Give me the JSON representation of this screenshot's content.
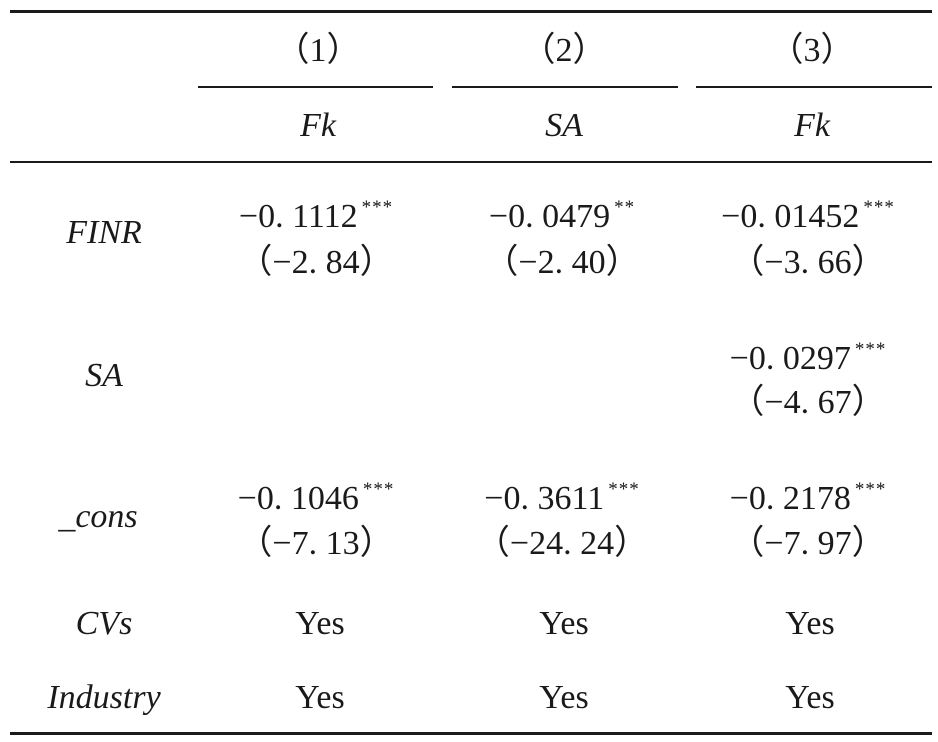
{
  "table": {
    "column_numbers": [
      "（1）",
      "（2）",
      "（3）"
    ],
    "column_vars": [
      "Fk",
      "SA",
      "Fk"
    ],
    "rows": [
      {
        "label": "FINR",
        "cells": [
          {
            "coef": "−0. 1112",
            "stars": "***",
            "t": "（−2. 84）"
          },
          {
            "coef": "−0. 0479",
            "stars": "**",
            "t": "（−2. 40）"
          },
          {
            "coef": "−0. 01452",
            "stars": "***",
            "t": "（−3. 66）"
          }
        ]
      },
      {
        "label": "SA",
        "cells": [
          {
            "coef": "",
            "stars": "",
            "t": ""
          },
          {
            "coef": "",
            "stars": "",
            "t": ""
          },
          {
            "coef": "−0. 0297",
            "stars": "***",
            "t": "（−4. 67）"
          }
        ]
      },
      {
        "label": "_cons",
        "cells": [
          {
            "coef": "−0. 1046",
            "stars": "***",
            "t": "（−7. 13）"
          },
          {
            "coef": "−0. 3611",
            "stars": "***",
            "t": "（−24. 24）"
          },
          {
            "coef": "−0. 2178",
            "stars": "***",
            "t": "（−7. 97）"
          }
        ]
      }
    ],
    "controls": [
      {
        "label": "CVs",
        "values": [
          "Yes",
          "Yes",
          "Yes"
        ]
      },
      {
        "label": "Industry",
        "values": [
          "Yes",
          "Yes",
          "Yes"
        ]
      }
    ]
  }
}
